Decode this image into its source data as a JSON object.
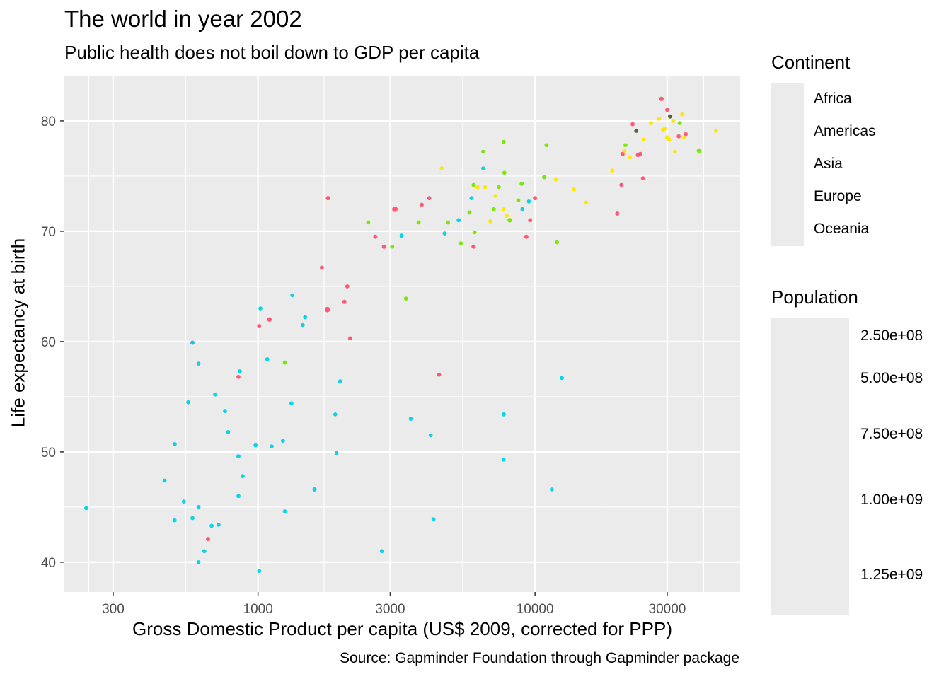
{
  "chart_data": {
    "type": "scatter",
    "title": "The world in year 2002",
    "subtitle": "Public health does not boil down to GDP per capita",
    "xlabel": "Gross Domestic Product per capita (US$ 2009, corrected for PPP)",
    "ylabel": "Life expectancy at birth",
    "caption": "Source: Gapminder Foundation through Gapminder package",
    "x_scale": "log10",
    "xlim": [
      200,
      55000
    ],
    "ylim": [
      37.3,
      84.1
    ],
    "x_ticks": [
      300,
      1000,
      3000,
      10000,
      30000
    ],
    "x_tick_labels": [
      "300",
      "1000",
      "3000",
      "10000",
      "30000"
    ],
    "y_ticks": [
      40,
      50,
      60,
      70,
      80
    ],
    "y_tick_labels": [
      "40",
      "50",
      "60",
      "70",
      "80"
    ],
    "grid": true,
    "legend_position": "right",
    "color_legend": {
      "title": "Continent",
      "entries": [
        {
          "name": "Africa",
          "color": "#00d3e6"
        },
        {
          "name": "Americas",
          "color": "#77e600"
        },
        {
          "name": "Asia",
          "color": "#ff5070"
        },
        {
          "name": "Europe",
          "color": "#ffe600"
        },
        {
          "name": "Oceania",
          "color": "#4d5e25"
        }
      ]
    },
    "size_legend": {
      "title": "Population",
      "breaks": [
        250000000,
        500000000,
        750000000,
        1000000000,
        1250000000
      ],
      "labels": [
        "2.50e+08",
        "5.00e+08",
        "7.50e+08",
        "1.00e+09",
        "1.25e+09"
      ]
    },
    "series": [
      {
        "name": "Africa",
        "points": [
          {
            "x": 240,
            "y": 44.9,
            "pop": 25000000
          },
          {
            "x": 500,
            "y": 50.7,
            "pop": 32000000
          },
          {
            "x": 460,
            "y": 47.4,
            "pop": 3500000
          },
          {
            "x": 500,
            "y": 43.8,
            "pop": 3000000
          },
          {
            "x": 540,
            "y": 45.5,
            "pop": 2000000
          },
          {
            "x": 560,
            "y": 54.5,
            "pop": 9000000
          },
          {
            "x": 580,
            "y": 59.9,
            "pop": 4000000
          },
          {
            "x": 580,
            "y": 44.0,
            "pop": 11000000
          },
          {
            "x": 610,
            "y": 58.0,
            "pop": 1500000
          },
          {
            "x": 610,
            "y": 45.0,
            "pop": 8000000
          },
          {
            "x": 610,
            "y": 40.0,
            "pop": 8000000
          },
          {
            "x": 640,
            "y": 41.0,
            "pop": 6000000
          },
          {
            "x": 680,
            "y": 43.3,
            "pop": 5000000
          },
          {
            "x": 700,
            "y": 55.2,
            "pop": 4000000
          },
          {
            "x": 720,
            "y": 43.4,
            "pop": 7000000
          },
          {
            "x": 760,
            "y": 53.7,
            "pop": 6000000
          },
          {
            "x": 780,
            "y": 51.8,
            "pop": 7000000
          },
          {
            "x": 860,
            "y": 57.3,
            "pop": 11000000
          },
          {
            "x": 850,
            "y": 49.6,
            "pop": 18000000
          },
          {
            "x": 850,
            "y": 46.0,
            "pop": 7000000
          },
          {
            "x": 880,
            "y": 47.8,
            "pop": 14000000
          },
          {
            "x": 980,
            "y": 50.6,
            "pop": 8000000
          },
          {
            "x": 1010,
            "y": 39.2,
            "pop": 7000000
          },
          {
            "x": 1020,
            "y": 63.0,
            "pop": 1000000
          },
          {
            "x": 1080,
            "y": 58.4,
            "pop": 12000000
          },
          {
            "x": 1120,
            "y": 50.5,
            "pop": 7000000
          },
          {
            "x": 1230,
            "y": 51.0,
            "pop": 16000000
          },
          {
            "x": 1250,
            "y": 44.6,
            "pop": 1500000
          },
          {
            "x": 1320,
            "y": 54.4,
            "pop": 6000000
          },
          {
            "x": 1330,
            "y": 64.2,
            "pop": 500000
          },
          {
            "x": 1480,
            "y": 62.2,
            "pop": 5000000
          },
          {
            "x": 1450,
            "y": 61.5,
            "pop": 9000000
          },
          {
            "x": 1600,
            "y": 46.6,
            "pop": 70000000
          },
          {
            "x": 1900,
            "y": 53.4,
            "pop": 400000
          },
          {
            "x": 1920,
            "y": 49.9,
            "pop": 10000000
          },
          {
            "x": 1980,
            "y": 56.4,
            "pop": 18000000
          },
          {
            "x": 2800,
            "y": 41.0,
            "pop": 8000000
          },
          {
            "x": 3300,
            "y": 69.6,
            "pop": 29000000
          },
          {
            "x": 3560,
            "y": 53.0,
            "pop": 3000000
          },
          {
            "x": 4200,
            "y": 51.5,
            "pop": 2000000
          },
          {
            "x": 4300,
            "y": 43.9,
            "pop": 1500000
          },
          {
            "x": 4720,
            "y": 69.8,
            "pop": 31000000
          },
          {
            "x": 5300,
            "y": 71.0,
            "pop": 20000000
          },
          {
            "x": 5900,
            "y": 73.0,
            "pop": 7000000
          },
          {
            "x": 6500,
            "y": 75.7,
            "pop": 800000
          },
          {
            "x": 7710,
            "y": 53.4,
            "pop": 20000000
          },
          {
            "x": 7700,
            "y": 49.3,
            "pop": 1000000
          },
          {
            "x": 9000,
            "y": 72.0,
            "pop": 1200000
          },
          {
            "x": 9500,
            "y": 72.7,
            "pop": 5000000
          },
          {
            "x": 11500,
            "y": 46.6,
            "pop": 1500000
          },
          {
            "x": 12500,
            "y": 56.7,
            "pop": 1200000
          }
        ]
      },
      {
        "name": "Americas",
        "points": [
          {
            "x": 1250,
            "y": 58.1,
            "pop": 8000000
          },
          {
            "x": 2500,
            "y": 70.8,
            "pop": 3000000
          },
          {
            "x": 3050,
            "y": 68.6,
            "pop": 5000000
          },
          {
            "x": 3420,
            "y": 63.9,
            "pop": 9000000
          },
          {
            "x": 3800,
            "y": 70.8,
            "pop": 6000000
          },
          {
            "x": 4850,
            "y": 70.8,
            "pop": 5000000
          },
          {
            "x": 5400,
            "y": 68.9,
            "pop": 8000000
          },
          {
            "x": 5800,
            "y": 71.7,
            "pop": 28000000
          },
          {
            "x": 6000,
            "y": 74.2,
            "pop": 11000000
          },
          {
            "x": 6050,
            "y": 69.9,
            "pop": 13000000
          },
          {
            "x": 6500,
            "y": 77.2,
            "pop": 9000000
          },
          {
            "x": 7100,
            "y": 72.0,
            "pop": 3000000
          },
          {
            "x": 7400,
            "y": 74.0,
            "pop": 3000000
          },
          {
            "x": 7700,
            "y": 78.1,
            "pop": 3000000
          },
          {
            "x": 7750,
            "y": 75.3,
            "pop": 4000000
          },
          {
            "x": 8100,
            "y": 71.0,
            "pop": 180000000
          },
          {
            "x": 8700,
            "y": 72.8,
            "pop": 10000000
          },
          {
            "x": 8950,
            "y": 74.3,
            "pop": 40000000
          },
          {
            "x": 10800,
            "y": 74.9,
            "pop": 102000000
          },
          {
            "x": 11000,
            "y": 77.8,
            "pop": 9000000
          },
          {
            "x": 12000,
            "y": 69.0,
            "pop": 1000000
          },
          {
            "x": 21200,
            "y": 77.8,
            "pop": 5000000
          },
          {
            "x": 33300,
            "y": 79.8,
            "pop": 31000000
          },
          {
            "x": 39100,
            "y": 77.3,
            "pop": 287000000
          }
        ]
      },
      {
        "name": "Asia",
        "points": [
          {
            "x": 580,
            "y": 59.9,
            "pop": 38000000
          },
          {
            "x": 660,
            "y": 42.1,
            "pop": 25000000
          },
          {
            "x": 850,
            "y": 56.8,
            "pop": 6000000
          },
          {
            "x": 1010,
            "y": 61.4,
            "pop": 22000000
          },
          {
            "x": 1100,
            "y": 62.0,
            "pop": 135000000
          },
          {
            "x": 1700,
            "y": 66.7,
            "pop": 20000000
          },
          {
            "x": 1780,
            "y": 62.9,
            "pop": 1034000000
          },
          {
            "x": 1790,
            "y": 73.0,
            "pop": 80000000
          },
          {
            "x": 2050,
            "y": 63.6,
            "pop": 50000000
          },
          {
            "x": 2100,
            "y": 65.0,
            "pop": 2000000
          },
          {
            "x": 2150,
            "y": 60.3,
            "pop": 10000000
          },
          {
            "x": 2650,
            "y": 69.5,
            "pop": 17000000
          },
          {
            "x": 2850,
            "y": 68.6,
            "pop": 82000000
          },
          {
            "x": 3120,
            "y": 72.0,
            "pop": 1280000000
          },
          {
            "x": 3900,
            "y": 72.4,
            "pop": 3000000
          },
          {
            "x": 4150,
            "y": 73.0,
            "pop": 10000000
          },
          {
            "x": 4500,
            "y": 57.0,
            "pop": 12000000
          },
          {
            "x": 6000,
            "y": 68.6,
            "pop": 40000000
          },
          {
            "x": 9300,
            "y": 69.5,
            "pop": 62000000
          },
          {
            "x": 9600,
            "y": 71.0,
            "pop": 2500000
          },
          {
            "x": 10000,
            "y": 73.0,
            "pop": 20000000
          },
          {
            "x": 19800,
            "y": 71.6,
            "pop": 24000000
          },
          {
            "x": 20500,
            "y": 74.2,
            "pop": 3000000
          },
          {
            "x": 20700,
            "y": 77.0,
            "pop": 47000000
          },
          {
            "x": 22500,
            "y": 79.7,
            "pop": 6000000
          },
          {
            "x": 23500,
            "y": 76.9,
            "pop": 3000000
          },
          {
            "x": 24000,
            "y": 77.0,
            "pop": 22000000
          },
          {
            "x": 24500,
            "y": 74.8,
            "pop": 1000000
          },
          {
            "x": 28600,
            "y": 82.0,
            "pop": 127000000
          },
          {
            "x": 30000,
            "y": 81.0,
            "pop": 7000000
          },
          {
            "x": 33000,
            "y": 78.6,
            "pop": 3000000
          },
          {
            "x": 35000,
            "y": 78.8,
            "pop": 4000000
          }
        ]
      },
      {
        "name": "Europe",
        "points": [
          {
            "x": 4600,
            "y": 75.7,
            "pop": 3000000
          },
          {
            "x": 6200,
            "y": 74.0,
            "pop": 10000000
          },
          {
            "x": 6600,
            "y": 74.0,
            "pop": 4000000
          },
          {
            "x": 6900,
            "y": 70.9,
            "pop": 67000000
          },
          {
            "x": 7200,
            "y": 73.2,
            "pop": 7000000
          },
          {
            "x": 7700,
            "y": 72.0,
            "pop": 2000000
          },
          {
            "x": 7900,
            "y": 71.4,
            "pop": 22000000
          },
          {
            "x": 11900,
            "y": 74.7,
            "pop": 38000000
          },
          {
            "x": 13800,
            "y": 73.8,
            "pop": 5000000
          },
          {
            "x": 15300,
            "y": 72.6,
            "pop": 10000000
          },
          {
            "x": 19000,
            "y": 75.5,
            "pop": 10000000
          },
          {
            "x": 21000,
            "y": 77.3,
            "pop": 9000000
          },
          {
            "x": 22000,
            "y": 76.7,
            "pop": 2000000
          },
          {
            "x": 24700,
            "y": 78.3,
            "pop": 10000000
          },
          {
            "x": 26200,
            "y": 79.8,
            "pop": 40000000
          },
          {
            "x": 28000,
            "y": 80.2,
            "pop": 57000000
          },
          {
            "x": 29000,
            "y": 79.2,
            "pop": 60000000
          },
          {
            "x": 29400,
            "y": 79.3,
            "pop": 16000000
          },
          {
            "x": 30000,
            "y": 78.5,
            "pop": 82000000
          },
          {
            "x": 30500,
            "y": 78.3,
            "pop": 8000000
          },
          {
            "x": 31500,
            "y": 80.0,
            "pop": 9000000
          },
          {
            "x": 32000,
            "y": 77.2,
            "pop": 5000000
          },
          {
            "x": 34000,
            "y": 80.6,
            "pop": 7000000
          },
          {
            "x": 34500,
            "y": 78.5,
            "pop": 4000000
          },
          {
            "x": 45000,
            "y": 79.1,
            "pop": 4000000
          }
        ]
      },
      {
        "name": "Oceania",
        "points": [
          {
            "x": 23200,
            "y": 79.1,
            "pop": 4000000
          },
          {
            "x": 30700,
            "y": 80.4,
            "pop": 20000000
          }
        ]
      }
    ]
  }
}
